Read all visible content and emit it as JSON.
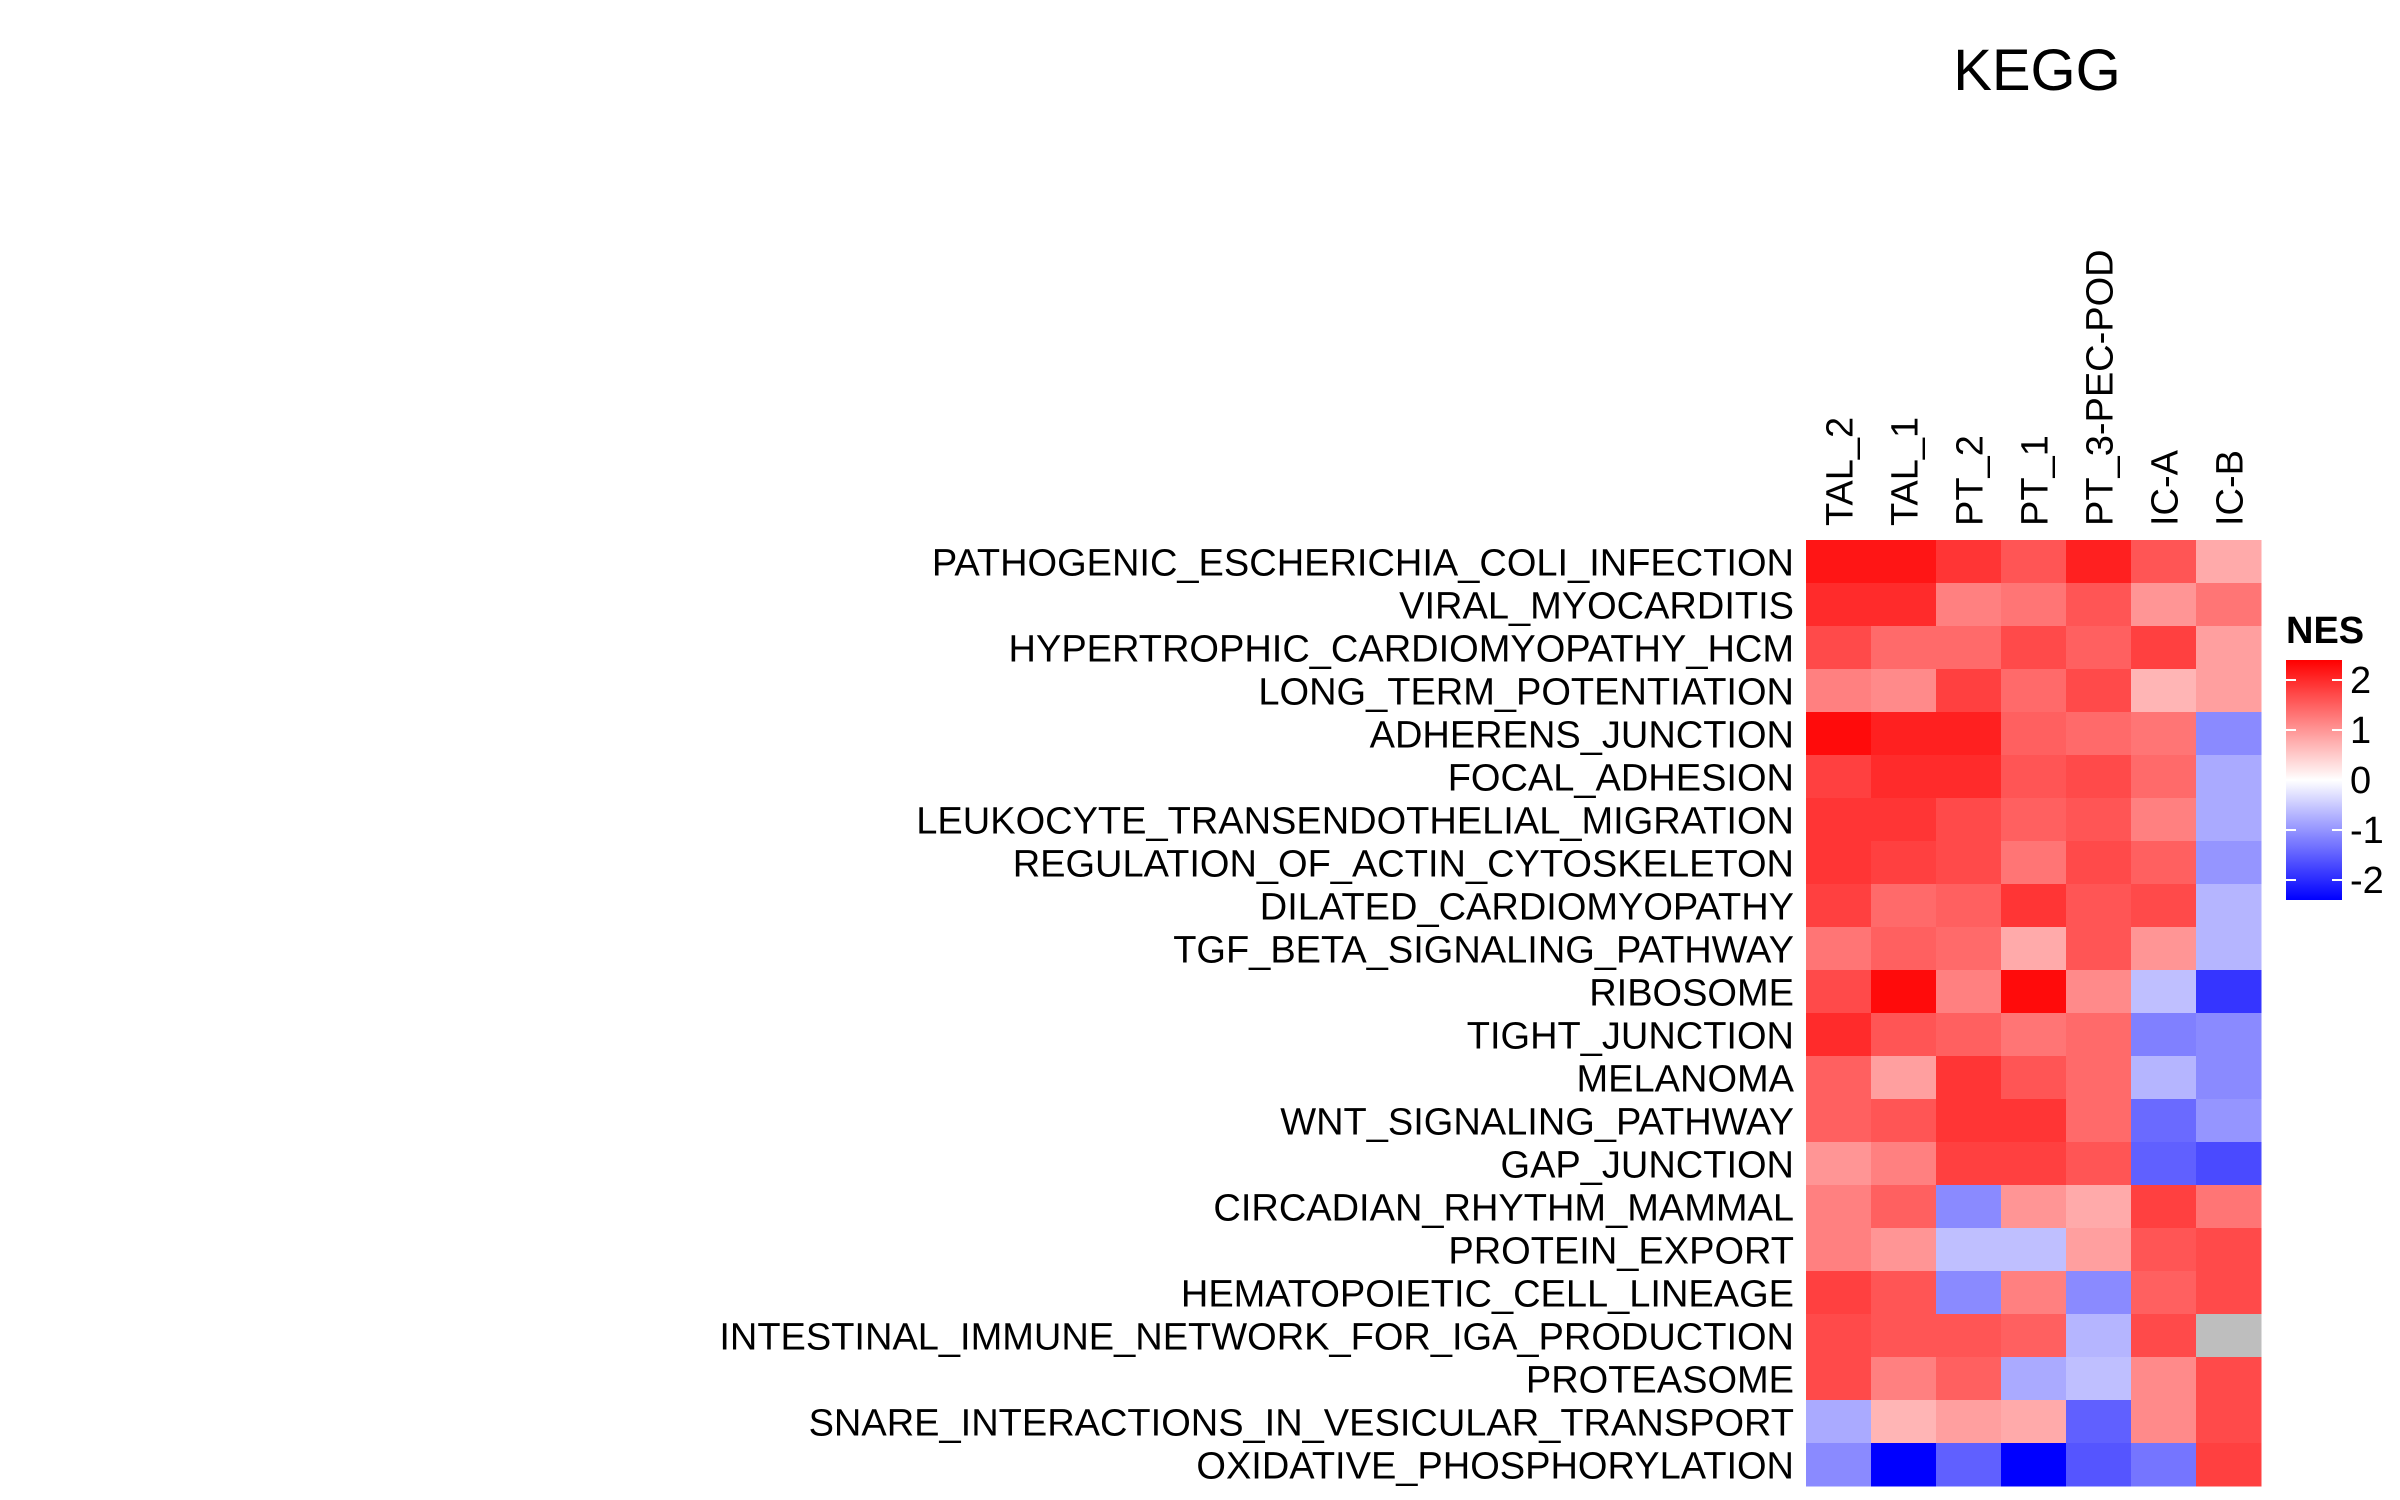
{
  "chart_data": {
    "type": "heatmap",
    "title": "KEGG",
    "columns": [
      "TAL_2",
      "TAL_1",
      "PT_2",
      "PT_1",
      "PT_3-PEC-POD",
      "IC-A",
      "IC-B"
    ],
    "rows": [
      "PATHOGENIC_ESCHERICHIA_COLI_INFECTION",
      "VIRAL_MYOCARDITIS",
      "HYPERTROPHIC_CARDIOMYOPATHY_HCM",
      "LONG_TERM_POTENTIATION",
      "ADHERENS_JUNCTION",
      "FOCAL_ADHESION",
      "LEUKOCYTE_TRANSENDOTHELIAL_MIGRATION",
      "REGULATION_OF_ACTIN_CYTOSKELETON",
      "DILATED_CARDIOMYOPATHY",
      "TGF_BETA_SIGNALING_PATHWAY",
      "RIBOSOME",
      "TIGHT_JUNCTION",
      "MELANOMA",
      "WNT_SIGNALING_PATHWAY",
      "GAP_JUNCTION",
      "CIRCADIAN_RHYTHM_MAMMAL",
      "PROTEIN_EXPORT",
      "HEMATOPOIETIC_CELL_LINEAGE",
      "INTESTINAL_IMMUNE_NETWORK_FOR_IGA_PRODUCTION",
      "PROTEASOME",
      "SNARE_INTERACTIONS_IN_VESICULAR_TRANSPORT",
      "OXIDATIVE_PHOSPHORYLATION"
    ],
    "values": [
      [
        2.2,
        2.2,
        1.9,
        1.6,
        2.1,
        1.6,
        0.8
      ],
      [
        2.0,
        2.0,
        1.2,
        1.3,
        1.6,
        1.0,
        1.3
      ],
      [
        1.7,
        1.4,
        1.4,
        1.7,
        1.5,
        1.8,
        0.9
      ],
      [
        1.2,
        1.1,
        1.8,
        1.4,
        1.7,
        0.7,
        0.9
      ],
      [
        2.3,
        2.1,
        2.1,
        1.5,
        1.4,
        1.3,
        -1.1
      ],
      [
        1.8,
        2.0,
        2.0,
        1.6,
        1.7,
        1.4,
        -0.8
      ],
      [
        1.9,
        1.9,
        1.7,
        1.5,
        1.6,
        1.2,
        -0.8
      ],
      [
        1.9,
        1.8,
        1.7,
        1.3,
        1.7,
        1.5,
        -1.0
      ],
      [
        1.8,
        1.4,
        1.5,
        1.9,
        1.6,
        1.7,
        -0.7
      ],
      [
        1.3,
        1.5,
        1.4,
        0.8,
        1.6,
        1.0,
        -0.7
      ],
      [
        1.7,
        2.3,
        1.2,
        2.3,
        1.1,
        -0.6,
        -1.9
      ],
      [
        2.0,
        1.6,
        1.5,
        1.3,
        1.4,
        -1.2,
        -1.1
      ],
      [
        1.5,
        0.9,
        1.9,
        1.6,
        1.4,
        -0.7,
        -1.1
      ],
      [
        1.5,
        1.6,
        1.9,
        1.9,
        1.4,
        -1.4,
        -1.0
      ],
      [
        1.0,
        1.2,
        1.8,
        1.8,
        1.6,
        -1.5,
        -1.7
      ],
      [
        1.2,
        1.5,
        -1.1,
        1.0,
        0.8,
        1.8,
        1.3
      ],
      [
        1.2,
        1.0,
        -0.6,
        -0.6,
        0.9,
        1.6,
        1.7
      ],
      [
        1.8,
        1.6,
        -1.1,
        1.2,
        -1.1,
        1.5,
        1.7
      ],
      [
        1.7,
        1.6,
        1.6,
        1.5,
        -0.7,
        1.7,
        null
      ],
      [
        1.7,
        1.2,
        1.5,
        -0.8,
        -0.6,
        1.1,
        1.7
      ],
      [
        -0.8,
        0.7,
        0.9,
        0.8,
        -1.5,
        1.1,
        1.7
      ],
      [
        -1.1,
        -2.4,
        -1.5,
        -2.4,
        -1.6,
        -1.3,
        1.8
      ]
    ],
    "na_color": "#bebebe",
    "color_scale": {
      "low": "#0000ff",
      "mid": "#ffffff",
      "high": "#ff0000",
      "min": -2.4,
      "max": 2.4
    },
    "legend": {
      "title": "NES",
      "ticks": [
        2,
        1,
        0,
        -1,
        -2
      ],
      "position": "right"
    }
  }
}
